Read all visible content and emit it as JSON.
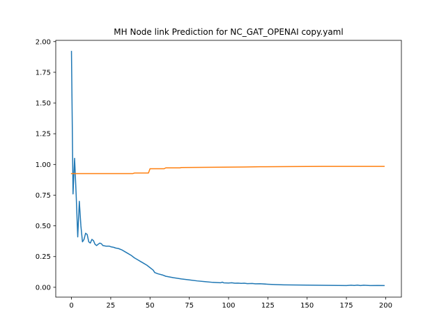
{
  "chart_data": {
    "type": "line",
    "title": "MH Node link Prediction for NC_GAT_OPENAI copy.yaml",
    "xlabel": "",
    "ylabel": "",
    "xlim": [
      -10,
      210
    ],
    "ylim": [
      -0.08,
      2.01
    ],
    "x_ticks": [
      0,
      25,
      50,
      75,
      100,
      125,
      150,
      175,
      200
    ],
    "x_tick_labels": [
      "0",
      "25",
      "50",
      "75",
      "100",
      "125",
      "150",
      "175",
      "200"
    ],
    "y_ticks": [
      0.0,
      0.25,
      0.5,
      0.75,
      1.0,
      1.25,
      1.5,
      1.75,
      2.0
    ],
    "y_tick_labels": [
      "0.00",
      "0.25",
      "0.50",
      "0.75",
      "1.00",
      "1.25",
      "1.50",
      "1.75",
      "2.00"
    ],
    "grid": false,
    "legend": "none",
    "series": [
      {
        "color": "#1f77b4",
        "points": [
          [
            0,
            1.92
          ],
          [
            1,
            0.76
          ],
          [
            2,
            1.05
          ],
          [
            3,
            0.75
          ],
          [
            4,
            0.41
          ],
          [
            5,
            0.7
          ],
          [
            6,
            0.5
          ],
          [
            7,
            0.37
          ],
          [
            8,
            0.39
          ],
          [
            9,
            0.44
          ],
          [
            10,
            0.43
          ],
          [
            11,
            0.37
          ],
          [
            12,
            0.36
          ],
          [
            13,
            0.39
          ],
          [
            14,
            0.38
          ],
          [
            15,
            0.35
          ],
          [
            16,
            0.34
          ],
          [
            17,
            0.35
          ],
          [
            18,
            0.36
          ],
          [
            19,
            0.355
          ],
          [
            20,
            0.34
          ],
          [
            22,
            0.335
          ],
          [
            24,
            0.335
          ],
          [
            25,
            0.33
          ],
          [
            27,
            0.325
          ],
          [
            28,
            0.32
          ],
          [
            30,
            0.315
          ],
          [
            32,
            0.305
          ],
          [
            34,
            0.29
          ],
          [
            36,
            0.275
          ],
          [
            38,
            0.26
          ],
          [
            40,
            0.24
          ],
          [
            42,
            0.225
          ],
          [
            44,
            0.21
          ],
          [
            46,
            0.195
          ],
          [
            48,
            0.18
          ],
          [
            50,
            0.16
          ],
          [
            52,
            0.14
          ],
          [
            53,
            0.12
          ],
          [
            55,
            0.11
          ],
          [
            58,
            0.1
          ],
          [
            60,
            0.09
          ],
          [
            65,
            0.078
          ],
          [
            70,
            0.068
          ],
          [
            75,
            0.06
          ],
          [
            80,
            0.052
          ],
          [
            85,
            0.046
          ],
          [
            90,
            0.04
          ],
          [
            93,
            0.038
          ],
          [
            95,
            0.037
          ],
          [
            96,
            0.042
          ],
          [
            97,
            0.036
          ],
          [
            100,
            0.035
          ],
          [
            102,
            0.037
          ],
          [
            104,
            0.033
          ],
          [
            106,
            0.034
          ],
          [
            108,
            0.032
          ],
          [
            110,
            0.033
          ],
          [
            112,
            0.03
          ],
          [
            115,
            0.031
          ],
          [
            117,
            0.028
          ],
          [
            120,
            0.029
          ],
          [
            125,
            0.025
          ],
          [
            130,
            0.022
          ],
          [
            135,
            0.02
          ],
          [
            140,
            0.019
          ],
          [
            150,
            0.018
          ],
          [
            160,
            0.016
          ],
          [
            170,
            0.015
          ],
          [
            175,
            0.014
          ],
          [
            178,
            0.017
          ],
          [
            180,
            0.015
          ],
          [
            182,
            0.018
          ],
          [
            184,
            0.014
          ],
          [
            186,
            0.017
          ],
          [
            190,
            0.014
          ],
          [
            195,
            0.015
          ],
          [
            199,
            0.014
          ]
        ]
      },
      {
        "color": "#ff7f0e",
        "points": [
          [
            0,
            0.925
          ],
          [
            10,
            0.925
          ],
          [
            20,
            0.925
          ],
          [
            30,
            0.925
          ],
          [
            39,
            0.925
          ],
          [
            40,
            0.93
          ],
          [
            49,
            0.93
          ],
          [
            50,
            0.965
          ],
          [
            59,
            0.965
          ],
          [
            60,
            0.972
          ],
          [
            69,
            0.972
          ],
          [
            70,
            0.975
          ],
          [
            90,
            0.977
          ],
          [
            110,
            0.979
          ],
          [
            120,
            0.981
          ],
          [
            140,
            0.983
          ],
          [
            160,
            0.984
          ],
          [
            180,
            0.984
          ],
          [
            199,
            0.984
          ]
        ]
      }
    ]
  }
}
